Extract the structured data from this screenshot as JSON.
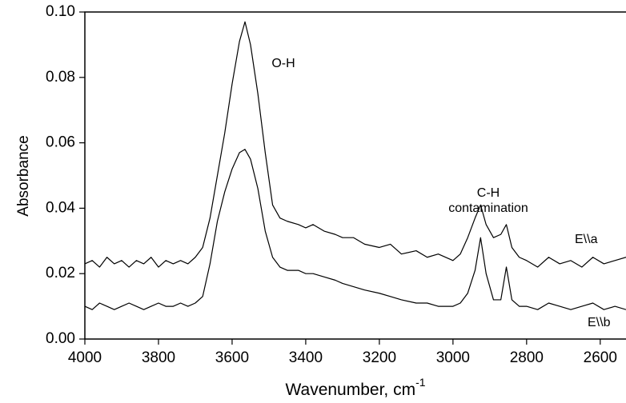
{
  "chart_data": {
    "type": "line",
    "xlabel": "Wavenumber, cm",
    "xlabel_sup": "-1",
    "ylabel": "Absorbance",
    "x": [
      4000,
      3980,
      3960,
      3940,
      3920,
      3900,
      3880,
      3860,
      3840,
      3820,
      3800,
      3780,
      3760,
      3740,
      3720,
      3700,
      3680,
      3660,
      3640,
      3620,
      3600,
      3580,
      3565,
      3550,
      3530,
      3510,
      3490,
      3470,
      3450,
      3420,
      3400,
      3380,
      3350,
      3320,
      3300,
      3270,
      3240,
      3200,
      3170,
      3140,
      3100,
      3070,
      3040,
      3000,
      2980,
      2960,
      2940,
      2925,
      2910,
      2890,
      2870,
      2855,
      2840,
      2820,
      2800,
      2770,
      2740,
      2710,
      2680,
      2650,
      2620,
      2590,
      2560,
      2530
    ],
    "series": [
      {
        "name": "E\\\\a",
        "color": "#000000",
        "values": [
          0.023,
          0.024,
          0.022,
          0.025,
          0.023,
          0.024,
          0.022,
          0.024,
          0.023,
          0.025,
          0.022,
          0.024,
          0.023,
          0.024,
          0.023,
          0.025,
          0.028,
          0.037,
          0.05,
          0.063,
          0.078,
          0.091,
          0.097,
          0.09,
          0.075,
          0.057,
          0.041,
          0.037,
          0.036,
          0.035,
          0.034,
          0.035,
          0.033,
          0.032,
          0.031,
          0.031,
          0.029,
          0.028,
          0.029,
          0.026,
          0.027,
          0.025,
          0.026,
          0.024,
          0.026,
          0.031,
          0.037,
          0.041,
          0.035,
          0.031,
          0.032,
          0.035,
          0.028,
          0.025,
          0.024,
          0.022,
          0.025,
          0.023,
          0.024,
          0.022,
          0.025,
          0.023,
          0.024,
          0.025
        ]
      },
      {
        "name": "E\\\\b",
        "color": "#000000",
        "values": [
          0.01,
          0.009,
          0.011,
          0.01,
          0.009,
          0.01,
          0.011,
          0.01,
          0.009,
          0.01,
          0.011,
          0.01,
          0.01,
          0.011,
          0.01,
          0.011,
          0.013,
          0.023,
          0.036,
          0.045,
          0.052,
          0.057,
          0.058,
          0.055,
          0.046,
          0.033,
          0.025,
          0.022,
          0.021,
          0.021,
          0.02,
          0.02,
          0.019,
          0.018,
          0.017,
          0.016,
          0.015,
          0.014,
          0.013,
          0.012,
          0.011,
          0.011,
          0.01,
          0.01,
          0.011,
          0.014,
          0.021,
          0.031,
          0.02,
          0.012,
          0.012,
          0.022,
          0.012,
          0.01,
          0.01,
          0.009,
          0.011,
          0.01,
          0.009,
          0.01,
          0.011,
          0.009,
          0.01,
          0.009
        ]
      }
    ],
    "annotations": [
      "O-H",
      "C-H",
      "contamination"
    ],
    "xlim": [
      4000,
      2530
    ],
    "xticks": [
      4000,
      3800,
      3600,
      3400,
      3200,
      3000,
      2800,
      2600
    ],
    "ylim": [
      0,
      0.1
    ],
    "yticks": [
      {
        "value": 0,
        "label": "0.00"
      },
      {
        "value": 0.02,
        "label": "0.02"
      },
      {
        "value": 0.04,
        "label": "0.04"
      },
      {
        "value": 0.06,
        "label": "0.06"
      },
      {
        "value": 0.08,
        "label": "0.08"
      },
      {
        "value": 0.1,
        "label": "0.10"
      }
    ],
    "grid": false
  }
}
